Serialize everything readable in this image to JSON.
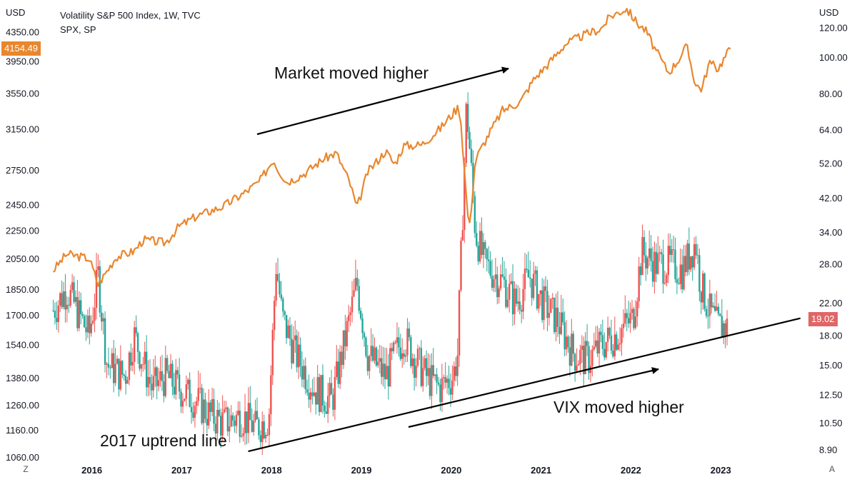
{
  "legend": {
    "line1": "Volatility S&P 500 Index, 1W, TVC",
    "line2": "SPX, SP"
  },
  "left_axis": {
    "unit": "USD",
    "ticks": [
      4350,
      3950,
      3550,
      3150,
      2750,
      2450,
      2250,
      2050,
      1850,
      1700,
      1540,
      1380,
      1260,
      1160,
      1060
    ],
    "tick_labels": [
      "4350.00",
      "3950.00",
      "3550.00",
      "3150.00",
      "2750.00",
      "2450.00",
      "2250.00",
      "2050.00",
      "1850.00",
      "1700.00",
      "1540.00",
      "1380.00",
      "1260.00",
      "1160.00",
      "1060.00"
    ],
    "current_value": "4154.49"
  },
  "right_axis": {
    "unit": "USD",
    "ticks": [
      120,
      100,
      80,
      64,
      52,
      42,
      34,
      28,
      22,
      18,
      15,
      12.5,
      10.5,
      8.9
    ],
    "tick_labels": [
      "120.00",
      "100.00",
      "80.00",
      "64.00",
      "52.00",
      "42.00",
      "34.00",
      "28.00",
      "22.00",
      "18.00",
      "15.00",
      "12.50",
      "10.50",
      "8.90"
    ],
    "current_value": "19.02"
  },
  "x_axis": {
    "years": [
      "2016",
      "2017",
      "2018",
      "2019",
      "2020",
      "2021",
      "2022",
      "2023"
    ]
  },
  "buttons": {
    "left": "Z",
    "right": "A"
  },
  "annotations": {
    "market": "Market moved higher",
    "vix": "VIX moved higher",
    "uptrend": "2017 uptrend line"
  },
  "colors": {
    "spx_line": "#E8872E",
    "candle_up": "#26A69A",
    "candle_down": "#EF5350",
    "spx_tag": "#E8872E",
    "vix_tag": "#E06666"
  },
  "chart_data": {
    "type": "line",
    "scale": "log",
    "series": [
      {
        "name": "SPX",
        "axis": "left",
        "x": [
          2015.6,
          2015.75,
          2016.0,
          2016.1,
          2016.3,
          2016.5,
          2016.6,
          2016.85,
          2017.0,
          2017.2,
          2017.5,
          2017.75,
          2017.9,
          2018.05,
          2018.1,
          2018.2,
          2018.4,
          2018.6,
          2018.75,
          2018.9,
          2018.98,
          2019.1,
          2019.3,
          2019.4,
          2019.5,
          2019.7,
          2019.9,
          2020.1,
          2020.13,
          2020.2,
          2020.23,
          2020.3,
          2020.45,
          2020.6,
          2020.8,
          2020.95,
          2021.1,
          2021.3,
          2021.5,
          2021.7,
          2021.8,
          2021.98,
          2022.1,
          2022.2,
          2022.3,
          2022.45,
          2022.55,
          2022.65,
          2022.75,
          2022.82,
          2022.9,
          2023.0,
          2023.15
        ],
        "y": [
          1970,
          2080,
          2050,
          1880,
          2060,
          2100,
          2180,
          2160,
          2280,
          2360,
          2440,
          2560,
          2650,
          2850,
          2760,
          2640,
          2720,
          2850,
          2910,
          2640,
          2420,
          2730,
          2930,
          2800,
          2980,
          2990,
          3150,
          3380,
          3330,
          2500,
          2250,
          2850,
          3100,
          3350,
          3450,
          3720,
          3900,
          4180,
          4300,
          4400,
          4580,
          4700,
          4480,
          4360,
          4100,
          3800,
          3950,
          4150,
          3650,
          3600,
          3930,
          3850,
          4150
        ]
      },
      {
        "name": "VIX",
        "axis": "right",
        "type": "candlestick",
        "x": [
          2015.6,
          2015.75,
          2016.0,
          2016.1,
          2016.2,
          2016.4,
          2016.5,
          2016.7,
          2016.85,
          2017.0,
          2017.2,
          2017.35,
          2017.5,
          2017.7,
          2017.85,
          2018.0,
          2018.08,
          2018.15,
          2018.3,
          2018.5,
          2018.7,
          2018.9,
          2018.98,
          2019.1,
          2019.3,
          2019.5,
          2019.6,
          2019.75,
          2019.9,
          2020.05,
          2020.1,
          2020.2,
          2020.3,
          2020.4,
          2020.6,
          2020.75,
          2020.9,
          2021.05,
          2021.2,
          2021.4,
          2021.55,
          2021.7,
          2021.85,
          2022.05,
          2022.15,
          2022.3,
          2022.45,
          2022.6,
          2022.75,
          2022.8,
          2022.9,
          2023.0,
          2023.1
        ],
        "y": [
          21,
          24,
          18,
          26,
          15,
          14,
          18,
          13,
          14,
          13,
          12,
          11,
          10.5,
          11,
          10.2,
          10.8,
          28,
          20,
          16,
          13,
          12,
          20,
          25,
          16,
          14,
          18,
          16,
          14,
          13,
          14,
          16,
          75,
          34,
          28,
          25,
          22,
          26,
          22,
          20,
          16,
          15.5,
          17,
          18,
          20,
          30,
          28,
          28,
          27,
          32,
          25,
          21,
          19,
          19.02
        ]
      }
    ],
    "left_ylim": [
      1060,
      4700
    ],
    "right_ylim": [
      8.5,
      135
    ],
    "xlim": [
      2015.58,
      2023.95
    ],
    "trendline": {
      "label": "2017 uptrend line",
      "from": [
        2017.85,
        9.0
      ],
      "to": [
        2023.9,
        20.0
      ]
    },
    "grid": false
  }
}
